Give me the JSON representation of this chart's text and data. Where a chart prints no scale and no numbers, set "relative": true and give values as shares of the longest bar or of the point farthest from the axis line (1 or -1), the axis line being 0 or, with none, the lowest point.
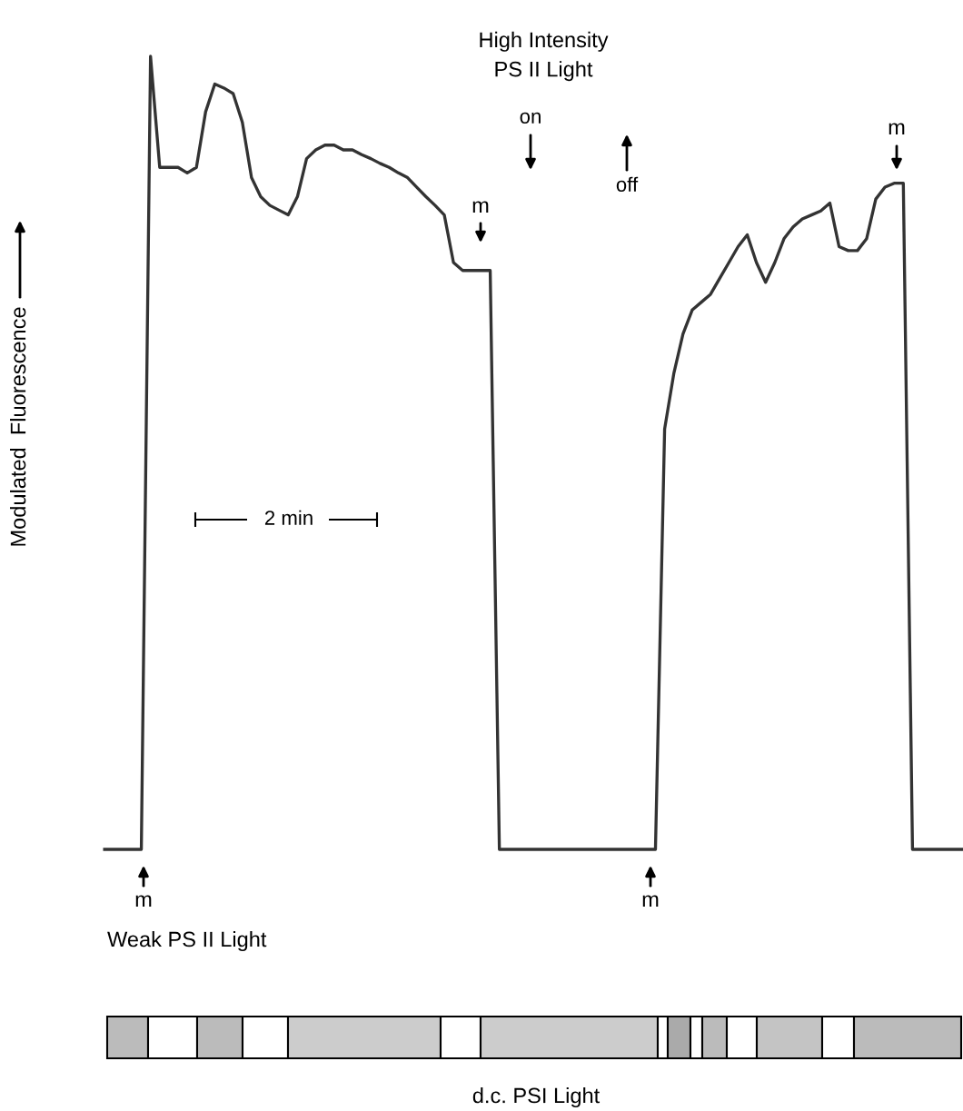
{
  "chart_data": {
    "type": "line",
    "relative": true,
    "ylabel": "Modulated  Fluorescence",
    "categories": [
      null,
      null,
      null,
      null,
      null,
      null,
      null,
      null,
      null,
      null,
      null,
      null,
      null,
      null,
      null,
      null,
      null,
      null,
      null,
      null,
      null,
      null,
      null,
      null,
      null,
      null,
      null,
      null,
      null,
      null,
      null,
      null,
      null,
      null,
      null,
      null,
      null,
      null,
      null,
      null,
      null,
      null,
      null,
      null,
      null,
      null,
      null,
      null,
      null,
      null,
      null,
      null,
      null,
      null,
      null,
      null,
      null,
      null,
      null,
      null,
      null,
      null,
      null,
      null,
      null,
      null,
      null,
      null,
      null,
      null,
      null,
      null,
      null,
      null,
      null,
      null,
      null,
      null,
      null,
      null,
      null,
      null,
      null,
      null,
      null,
      null,
      null,
      null,
      null,
      null,
      null,
      null,
      null,
      null,
      null
    ],
    "series": [
      {
        "color": "#333333",
        "values": [
          0,
          0,
          0,
          0,
          0,
          1.0,
          0.86,
          0.86,
          0.86,
          0.853,
          0.86,
          0.93,
          0.965,
          0.96,
          0.953,
          0.917,
          0.847,
          0.823,
          0.812,
          0.806,
          0.8,
          0.823,
          0.871,
          0.882,
          0.888,
          0.888,
          0.882,
          0.882,
          0.876,
          0.871,
          0.865,
          0.86,
          0.853,
          0.847,
          0.835,
          0.823,
          0.812,
          0.8,
          0.74,
          0.73,
          0.73,
          0.73,
          0.73,
          0,
          0,
          0,
          0,
          0,
          0,
          0,
          0,
          0,
          0,
          0,
          0,
          0,
          0,
          0,
          0,
          0,
          0,
          0.53,
          0.6,
          0.65,
          0.68,
          0.69,
          0.7,
          0.72,
          0.74,
          0.76,
          0.775,
          0.74,
          0.715,
          0.74,
          0.77,
          0.785,
          0.795,
          0.8,
          0.805,
          0.815,
          0.76,
          0.755,
          0.755,
          0.77,
          0.82,
          0.835,
          0.84,
          0.84,
          0,
          0,
          0,
          0,
          0,
          0,
          0
        ]
      }
    ],
    "annotations": [
      "High Intensity\nPS II Light",
      "on",
      "off",
      "m",
      "m",
      "m",
      "m",
      "2 min",
      "Weak PS II Light",
      "d.c. PSI Light"
    ],
    "legend": false,
    "marker": "none",
    "line_style": "solid"
  }
}
